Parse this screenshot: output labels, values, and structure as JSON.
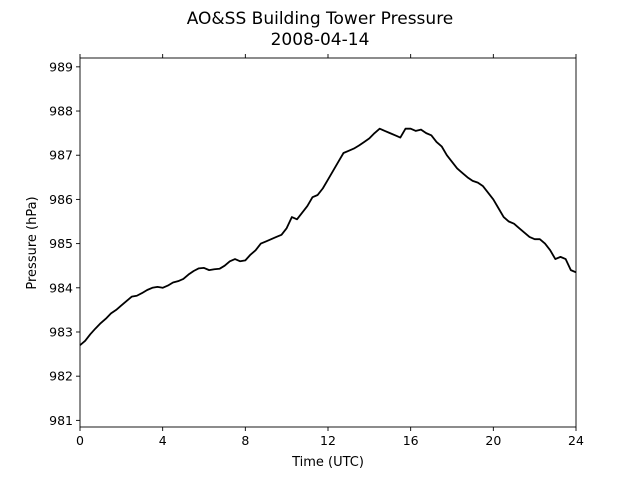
{
  "chart_data": {
    "type": "line",
    "title": "AO&SS Building Tower Pressure",
    "subtitle": "2008-04-14",
    "xlabel": "Time (UTC)",
    "ylabel": "Pressure (hPa)",
    "xlim": [
      0,
      24
    ],
    "ylim": [
      980.85,
      989.2
    ],
    "xticks": [
      0,
      4,
      8,
      12,
      16,
      20,
      24
    ],
    "xtick_labels": [
      "0",
      "4",
      "8",
      "12",
      "16",
      "20",
      "24"
    ],
    "yticks": [
      981,
      982,
      983,
      984,
      985,
      986,
      987,
      988,
      989
    ],
    "ytick_labels": [
      "981",
      "982",
      "983",
      "984",
      "985",
      "986",
      "987",
      "988",
      "989"
    ],
    "grid": false,
    "line_color": "#000000",
    "series": [
      {
        "x": [
          0,
          0.25,
          0.5,
          0.75,
          1.0,
          1.25,
          1.5,
          1.75,
          2.0,
          2.25,
          2.5,
          2.75,
          3.0,
          3.25,
          3.5,
          3.75,
          4.0,
          4.25,
          4.5,
          4.75,
          5.0,
          5.25,
          5.5,
          5.75,
          6.0,
          6.25,
          6.5,
          6.75,
          7.0,
          7.25,
          7.5,
          7.75,
          8.0,
          8.25,
          8.5,
          8.75,
          9.0,
          9.25,
          9.5,
          9.75,
          10.0,
          10.25,
          10.5,
          10.75,
          11.0,
          11.25,
          11.5,
          11.75,
          12.0,
          12.25,
          12.5,
          12.75,
          13.0,
          13.25,
          13.5,
          13.75,
          14.0,
          14.25,
          14.5,
          14.75,
          15.0,
          15.25,
          15.5,
          15.75,
          16.0,
          16.25,
          16.5,
          16.75,
          17.0,
          17.25,
          17.5,
          17.75,
          18.0,
          18.25,
          18.5,
          18.75,
          19.0,
          19.25,
          19.5,
          19.75,
          20.0,
          20.25,
          20.5,
          20.75,
          21.0,
          21.25,
          21.5,
          21.75,
          22.0,
          22.25,
          22.5,
          22.75,
          23.0,
          23.25,
          23.5,
          23.75,
          24.0
        ],
        "y": [
          982.7,
          982.8,
          982.95,
          983.08,
          983.2,
          983.3,
          983.42,
          983.5,
          983.6,
          983.7,
          983.8,
          983.82,
          983.88,
          983.95,
          984.0,
          984.02,
          984.0,
          984.05,
          984.12,
          984.15,
          984.2,
          984.3,
          984.38,
          984.44,
          984.45,
          984.4,
          984.42,
          984.43,
          984.5,
          984.6,
          984.65,
          984.6,
          984.62,
          984.75,
          984.85,
          985.0,
          985.05,
          985.1,
          985.15,
          985.2,
          985.35,
          985.6,
          985.55,
          985.7,
          985.85,
          986.05,
          986.1,
          986.25,
          986.45,
          986.65,
          986.85,
          987.05,
          987.1,
          987.15,
          987.22,
          987.3,
          987.38,
          987.5,
          987.6,
          987.55,
          987.5,
          987.45,
          987.4,
          987.6,
          987.6,
          987.55,
          987.58,
          987.5,
          987.45,
          987.3,
          987.2,
          987.0,
          986.85,
          986.7,
          986.6,
          986.5,
          986.42,
          986.38,
          986.3,
          986.15,
          986.0,
          985.8,
          985.6,
          985.5,
          985.45,
          985.35,
          985.25,
          985.15,
          985.1,
          985.1,
          985.0,
          984.85,
          984.65,
          984.7,
          984.65,
          984.4,
          984.35
        ]
      }
    ]
  }
}
